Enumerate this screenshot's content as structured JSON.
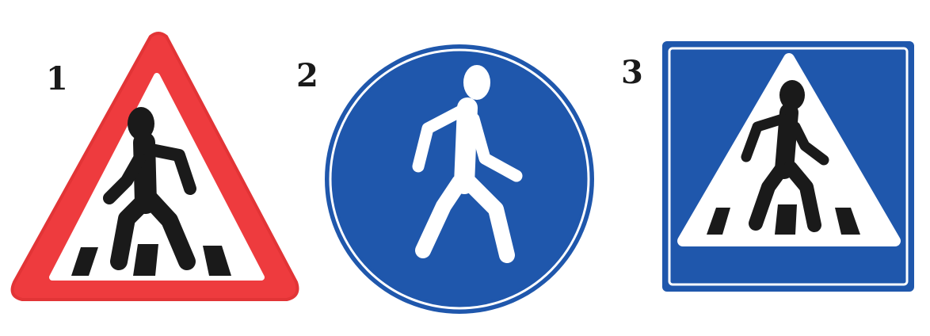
{
  "signs": [
    {
      "number": "1",
      "shape": "triangle",
      "border_color": "#ee3b3e",
      "icon": "pedestrian-crossing-icon"
    },
    {
      "number": "2",
      "shape": "circle",
      "background_color": "#1f57ac",
      "icon": "pedestrian-icon"
    },
    {
      "number": "3",
      "shape": "square",
      "background_color": "#1f57ac",
      "icon": "pedestrian-crossing-icon"
    }
  ],
  "colors": {
    "red": "#ee3b3e",
    "blue": "#1f57ac",
    "white": "#ffffff",
    "black": "#1a1a1a"
  }
}
